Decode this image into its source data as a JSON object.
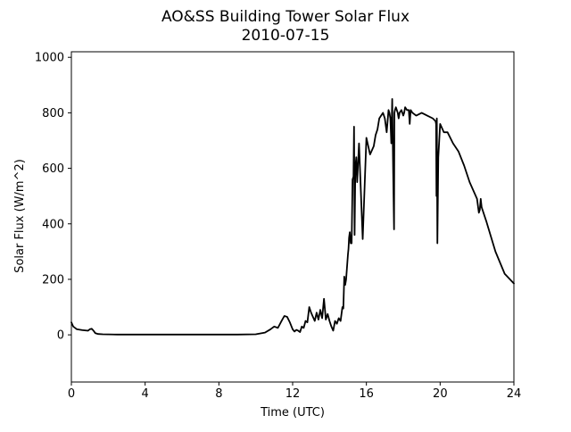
{
  "chart_data": {
    "type": "line",
    "title": "AO&SS Building Tower Solar Flux",
    "subtitle": "2010-07-15",
    "xlabel": "Time (UTC)",
    "ylabel": "Solar Flux (W/m^2)",
    "xlim": [
      0,
      24
    ],
    "ylim": [
      -170,
      1020
    ],
    "xticks": [
      0,
      4,
      8,
      12,
      16,
      20,
      24
    ],
    "yticks": [
      0,
      200,
      400,
      600,
      800,
      1000
    ],
    "grid": false,
    "series": [
      {
        "color": "#000000",
        "x": [
          0.0,
          0.1,
          0.3,
          0.6,
          0.9,
          1.0,
          1.1,
          1.2,
          1.3,
          1.45,
          1.7,
          2.5,
          4,
          6,
          8,
          9,
          10,
          10.5,
          10.8,
          11.0,
          11.2,
          11.4,
          11.55,
          11.7,
          11.85,
          12.0,
          12.1,
          12.2,
          12.3,
          12.4,
          12.5,
          12.6,
          12.7,
          12.8,
          12.9,
          13.0,
          13.1,
          13.2,
          13.3,
          13.4,
          13.5,
          13.6,
          13.7,
          13.8,
          13.9,
          14.0,
          14.1,
          14.2,
          14.3,
          14.4,
          14.5,
          14.6,
          14.7,
          14.75,
          14.8,
          14.85,
          14.9,
          15.0,
          15.03,
          15.06,
          15.1,
          15.15,
          15.2,
          15.25,
          15.3,
          15.33,
          15.36,
          15.4,
          15.45,
          15.5,
          15.6,
          15.8,
          16.0,
          16.2,
          16.4,
          16.5,
          16.6,
          16.65,
          16.7,
          16.8,
          16.9,
          17.0,
          17.1,
          17.2,
          17.25,
          17.3,
          17.35,
          17.4,
          17.45,
          17.5,
          17.52,
          17.55,
          17.6,
          17.7,
          17.75,
          17.8,
          17.9,
          18.0,
          18.05,
          18.1,
          18.2,
          18.3,
          18.35,
          18.4,
          18.5,
          18.7,
          19.0,
          19.3,
          19.6,
          19.75,
          19.78,
          19.8,
          19.82,
          19.85,
          19.9,
          20.0,
          20.2,
          20.4,
          20.7,
          21.0,
          21.3,
          21.6,
          22.0,
          22.1,
          22.15,
          22.2,
          22.25,
          22.5,
          23.0,
          23.5,
          24.0
        ],
        "y": [
          45,
          30,
          20,
          17,
          15,
          20,
          22,
          15,
          6,
          3,
          2,
          1,
          1,
          1,
          1,
          1,
          2,
          8,
          20,
          30,
          25,
          50,
          68,
          65,
          45,
          20,
          12,
          18,
          15,
          10,
          30,
          25,
          50,
          45,
          100,
          80,
          65,
          50,
          80,
          55,
          90,
          60,
          130,
          55,
          75,
          50,
          30,
          15,
          50,
          40,
          60,
          50,
          100,
          95,
          210,
          180,
          200,
          290,
          310,
          350,
          370,
          330,
          330,
          560,
          570,
          750,
          360,
          600,
          640,
          550,
          690,
          345,
          710,
          650,
          680,
          720,
          740,
          760,
          780,
          790,
          800,
          780,
          730,
          810,
          800,
          780,
          690,
          850,
          600,
          380,
          800,
          810,
          820,
          800,
          780,
          800,
          810,
          790,
          800,
          820,
          810,
          810,
          760,
          810,
          800,
          790,
          800,
          790,
          780,
          770,
          760,
          500,
          780,
          330,
          640,
          760,
          730,
          730,
          690,
          660,
          610,
          550,
          490,
          440,
          450,
          490,
          460,
          410,
          300,
          220,
          185
        ]
      }
    ]
  }
}
